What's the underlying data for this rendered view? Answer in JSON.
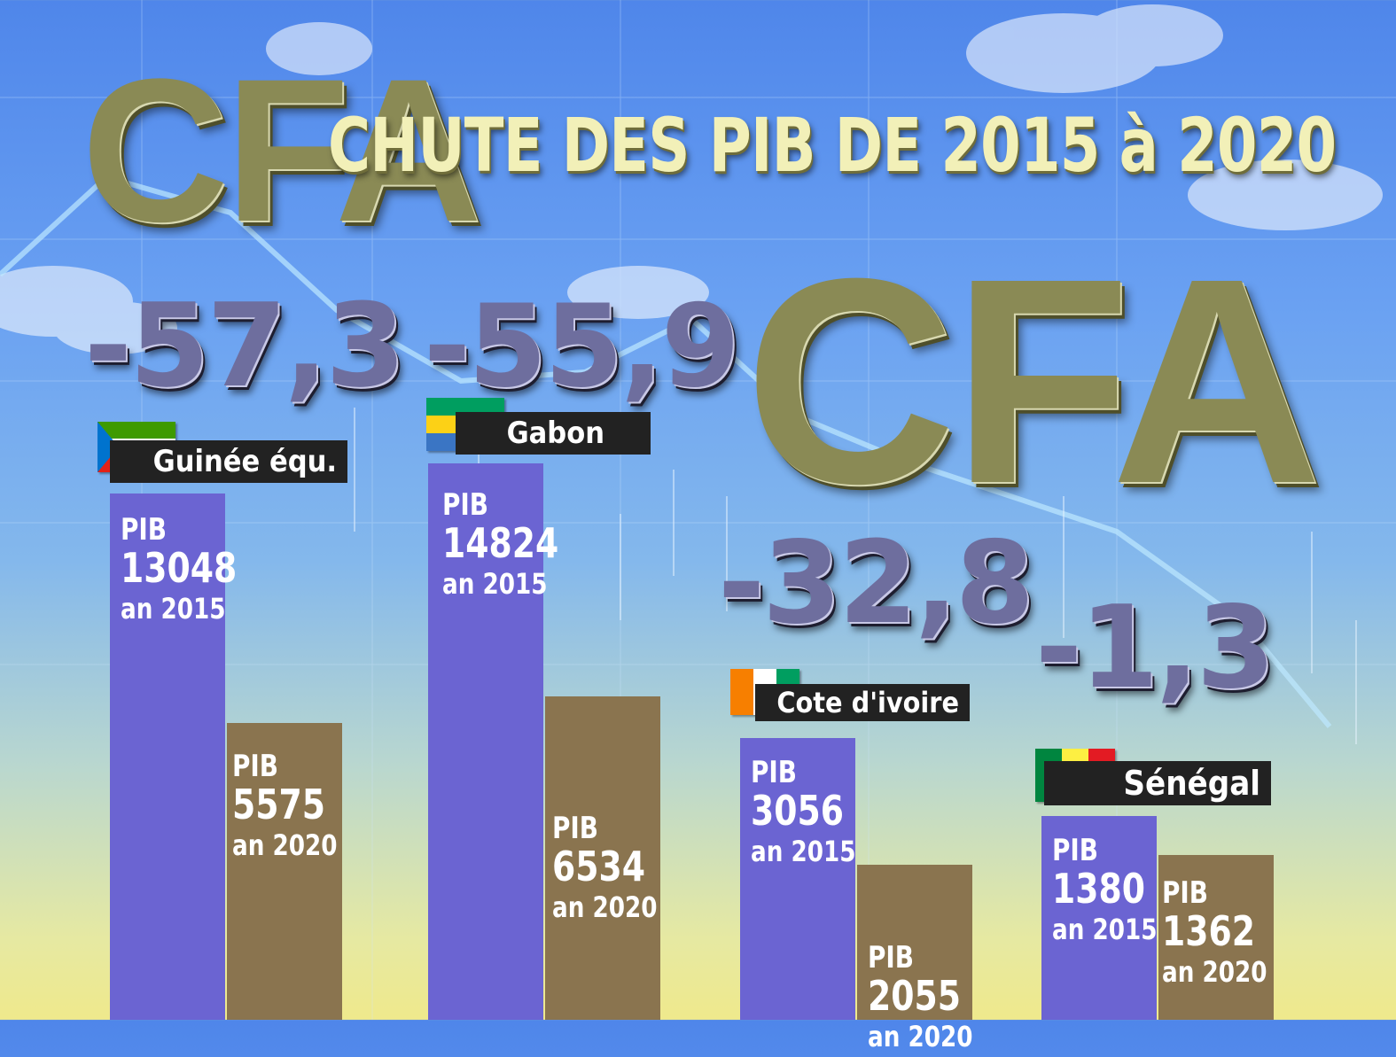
{
  "title": "CHUTE DES PIB DE 2015 à 2020",
  "watermark_text": "CFA",
  "colors": {
    "bar_2015": "#6b64d2",
    "bar_2020": "#8a744f",
    "label_bg": "#222222",
    "title": "#f2f0b8",
    "percent": "#6e6e9e"
  },
  "chart_data": {
    "type": "bar",
    "title": "CHUTE DES PIB DE 2015 à 2020",
    "categories": [
      "Guinée équ.",
      "Gabon",
      "Cote d'ivoire",
      "Sénégal"
    ],
    "series": [
      {
        "name": "an 2015",
        "values": [
          13048,
          14824,
          3056,
          1380
        ]
      },
      {
        "name": "an 2020",
        "values": [
          5575,
          6534,
          2055,
          1362
        ]
      }
    ],
    "change_percent": [
      "-57,3",
      "-55,9",
      "-32,8",
      "-1,3"
    ],
    "value_label_prefix": "PIB",
    "year_labels": [
      "an 2015",
      "an 2020"
    ],
    "flags": [
      "equatorial-guinea-flag",
      "gabon-flag",
      "cote-divoire-flag",
      "senegal-flag"
    ],
    "grid": false,
    "legend": "none"
  }
}
